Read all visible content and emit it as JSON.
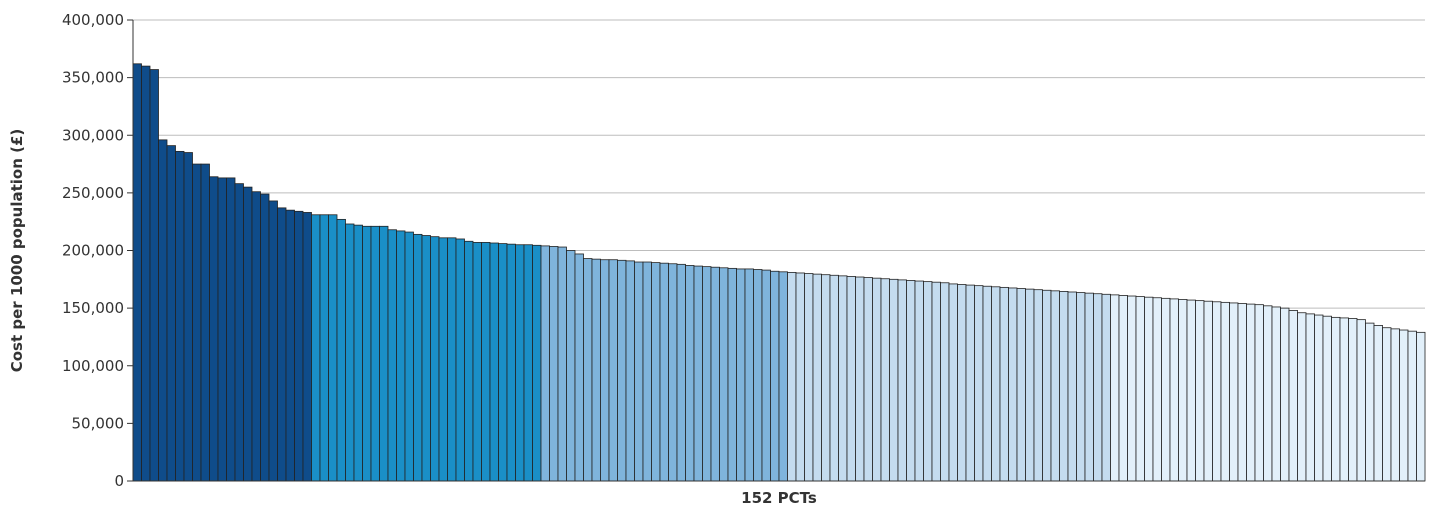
{
  "chart_data": {
    "type": "bar",
    "title": "",
    "xlabel": "152 PCTs",
    "ylabel": "Cost per 1000 population (£)",
    "ylim": [
      0,
      400000
    ],
    "yticks": [
      0,
      50000,
      100000,
      150000,
      200000,
      250000,
      300000,
      350000,
      400000
    ],
    "ytick_labels": [
      "0",
      "50,000",
      "100,000",
      "150,000",
      "200,000",
      "250,000",
      "300,000",
      "350,000",
      "400,000"
    ],
    "grid": true,
    "sorted": "descending",
    "group_colors": [
      "#0f4c8a",
      "#1a8fc7",
      "#7fb4dc",
      "#c4dcef",
      "#e2f0fa"
    ],
    "groups": [
      {
        "color_index": 0,
        "values": [
          362000,
          360000,
          357000,
          296000,
          291000,
          286000,
          285000,
          275000,
          275000,
          264000,
          263000,
          263000,
          258000,
          255000,
          251000,
          249000,
          243000,
          237000,
          235000,
          234000,
          233000
        ]
      },
      {
        "color_index": 1,
        "values": [
          231000,
          231000,
          231000,
          227000,
          223000,
          222000,
          221000,
          221000,
          221000,
          218000,
          217000,
          216000,
          214000,
          213000,
          212000,
          211000,
          211000,
          210000,
          208000,
          207000,
          207000,
          206500,
          206000,
          205500,
          205000,
          205000,
          204500
        ]
      },
      {
        "color_index": 2,
        "values": [
          204000,
          203500,
          203000,
          200000,
          197000,
          193000,
          192500,
          192000,
          192000,
          191500,
          191000,
          190000,
          190000,
          189500,
          189000,
          188500,
          188000,
          187000,
          186500,
          186000,
          185500,
          185000,
          184500,
          184000,
          184000,
          183500,
          183000,
          182000,
          181500
        ]
      },
      {
        "color_index": 3,
        "values": [
          181000,
          180500,
          180000,
          179500,
          179000,
          178500,
          178000,
          177500,
          177000,
          176500,
          176000,
          175500,
          175000,
          174500,
          174000,
          173500,
          173000,
          172500,
          172000,
          171000,
          170500,
          170000,
          169500,
          169000,
          168500,
          168000,
          167500,
          167000,
          166500,
          166000,
          165500,
          165000,
          164500,
          164000,
          163500,
          163000,
          162500,
          162000
        ]
      },
      {
        "color_index": 4,
        "values": [
          161500,
          161000,
          160500,
          160000,
          159500,
          159000,
          158500,
          158000,
          157500,
          157000,
          156500,
          156000,
          155500,
          155000,
          154500,
          154000,
          153500,
          153000,
          152000,
          151000,
          150000,
          148000,
          146000,
          145000,
          144000,
          143000,
          142000,
          141500,
          141000,
          140000,
          137000,
          135000,
          133000,
          132000,
          131000,
          130000,
          129000
        ]
      }
    ]
  }
}
